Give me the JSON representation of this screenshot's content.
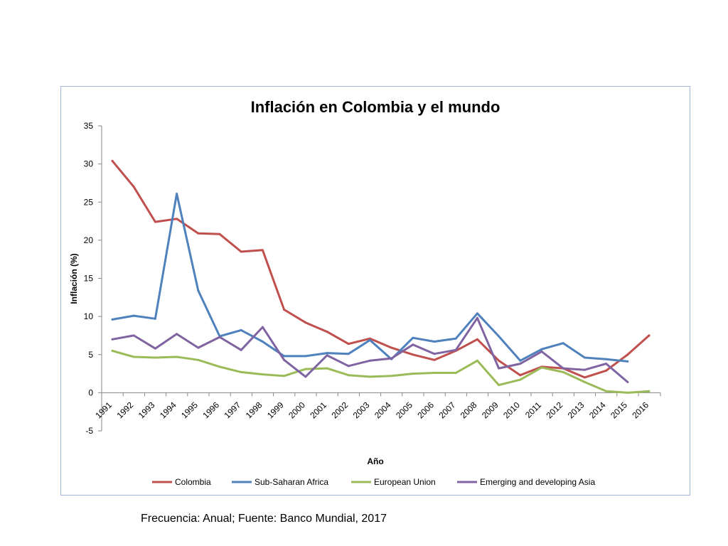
{
  "chart_data": {
    "type": "line",
    "title": "Inflación en Colombia y el mundo",
    "xlabel": "Año",
    "ylabel": "Inflación (%)",
    "ylim": [
      -5,
      35
    ],
    "yticks": [
      -5,
      0,
      5,
      10,
      15,
      20,
      25,
      30,
      35
    ],
    "grid": false,
    "legend": "bottom",
    "categories": [
      "1991",
      "1992",
      "1993",
      "1994",
      "1995",
      "1996",
      "1997",
      "1998",
      "1999",
      "2000",
      "2001",
      "2002",
      "2003",
      "2004",
      "2005",
      "2006",
      "2007",
      "2008",
      "2009",
      "2010",
      "2011",
      "2012",
      "2013",
      "2014",
      "2015",
      "2016"
    ],
    "series": [
      {
        "name": "Colombia",
        "color": "#c0504d",
        "values": [
          30.4,
          27.0,
          22.4,
          22.8,
          20.9,
          20.8,
          18.5,
          18.7,
          10.9,
          9.2,
          8.0,
          6.4,
          7.1,
          5.9,
          5.0,
          4.3,
          5.5,
          7.0,
          4.2,
          2.3,
          3.4,
          3.2,
          2.0,
          2.9,
          5.0,
          7.5
        ]
      },
      {
        "name": "Sub-Saharan Africa",
        "color": "#4f81bd",
        "values": [
          9.6,
          10.1,
          9.7,
          26.1,
          13.4,
          7.4,
          8.2,
          6.7,
          4.8,
          4.8,
          5.2,
          5.1,
          6.9,
          4.4,
          7.2,
          6.7,
          7.1,
          10.4,
          7.4,
          4.2,
          5.7,
          6.5,
          4.6,
          4.4,
          4.1,
          null
        ]
      },
      {
        "name": "European Union",
        "color": "#9bbb59",
        "values": [
          5.5,
          4.7,
          4.6,
          4.7,
          4.3,
          3.4,
          2.7,
          2.4,
          2.2,
          3.1,
          3.2,
          2.3,
          2.1,
          2.2,
          2.5,
          2.6,
          2.6,
          4.2,
          1.0,
          1.7,
          3.3,
          2.7,
          1.4,
          0.2,
          0.0,
          0.2
        ]
      },
      {
        "name": "Emerging and developing Asia",
        "color": "#8064a2",
        "values": [
          7.0,
          7.5,
          5.8,
          7.7,
          5.9,
          7.3,
          5.6,
          8.6,
          4.3,
          2.1,
          4.9,
          3.5,
          4.2,
          4.5,
          6.3,
          5.1,
          5.6,
          9.8,
          3.2,
          3.8,
          5.4,
          3.2,
          3.0,
          3.8,
          1.4,
          null
        ]
      }
    ]
  },
  "footer": {
    "source_note": "Frecuencia: Anual; Fuente: Banco Mundial, 2017"
  }
}
